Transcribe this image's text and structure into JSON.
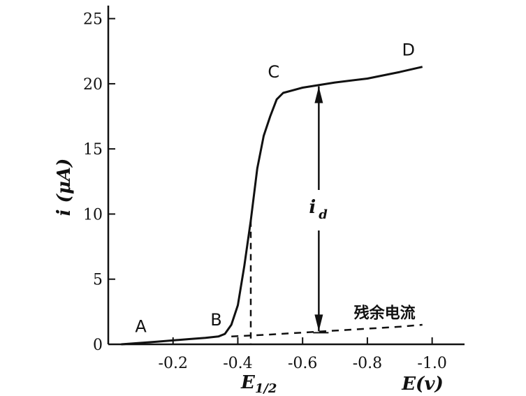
{
  "chart_data": {
    "type": "line",
    "title": "",
    "xlabel": "E(v)",
    "ylabel": "i (μA)",
    "xlim": [
      0,
      -1.1
    ],
    "ylim": [
      0,
      26
    ],
    "x_ticks": [
      -0.2,
      -0.4,
      -0.6,
      -0.8,
      -1.0
    ],
    "x_tick_labels": [
      "-0.2",
      "-0.4",
      "-0.6",
      "-0.8",
      "-1.0"
    ],
    "y_ticks": [
      0,
      5,
      10,
      15,
      20,
      25
    ],
    "y_tick_labels": [
      "0",
      "5",
      "10",
      "15",
      "20",
      "25"
    ],
    "grid": false,
    "series": [
      {
        "style": "solid",
        "x": [
          -0.04,
          -0.15,
          -0.25,
          -0.3,
          -0.34,
          -0.36,
          -0.38,
          -0.4,
          -0.42,
          -0.44,
          -0.46,
          -0.48,
          -0.5,
          -0.52,
          -0.54,
          -0.6,
          -0.7,
          -0.8,
          -0.9,
          -0.97
        ],
        "y": [
          0.0,
          0.2,
          0.4,
          0.5,
          0.6,
          0.8,
          1.5,
          3.0,
          6.0,
          9.5,
          13.5,
          16.0,
          17.5,
          18.8,
          19.3,
          19.7,
          20.1,
          20.4,
          20.9,
          21.3
        ]
      },
      {
        "name": "残余电流",
        "style": "dashed",
        "x": [
          -0.38,
          -0.5,
          -0.6,
          -0.7,
          -0.8,
          -0.9,
          -0.97
        ],
        "y": [
          0.6,
          0.75,
          0.9,
          1.05,
          1.2,
          1.35,
          1.5
        ]
      }
    ],
    "annotations": [
      {
        "id": "A",
        "text": "A",
        "x": -0.1,
        "y": 0.3
      },
      {
        "id": "B",
        "text": "B",
        "x": -0.35,
        "y": 0.6
      },
      {
        "id": "C",
        "text": "C",
        "x": -0.54,
        "y": 19.3
      },
      {
        "id": "D",
        "text": "D",
        "x": -0.92,
        "y": 21.0
      },
      {
        "id": "residual",
        "text": "残余电流",
        "x": -0.78,
        "y": 1.25
      }
    ],
    "half_wave": {
      "text_main": "E",
      "text_sub": "1/2",
      "x": -0.44,
      "y": 9.5
    },
    "diffusion_current": {
      "text_main": "i",
      "text_sub": "d",
      "x": -0.65,
      "y_bottom": 1.0,
      "y_top": 19.8
    }
  }
}
